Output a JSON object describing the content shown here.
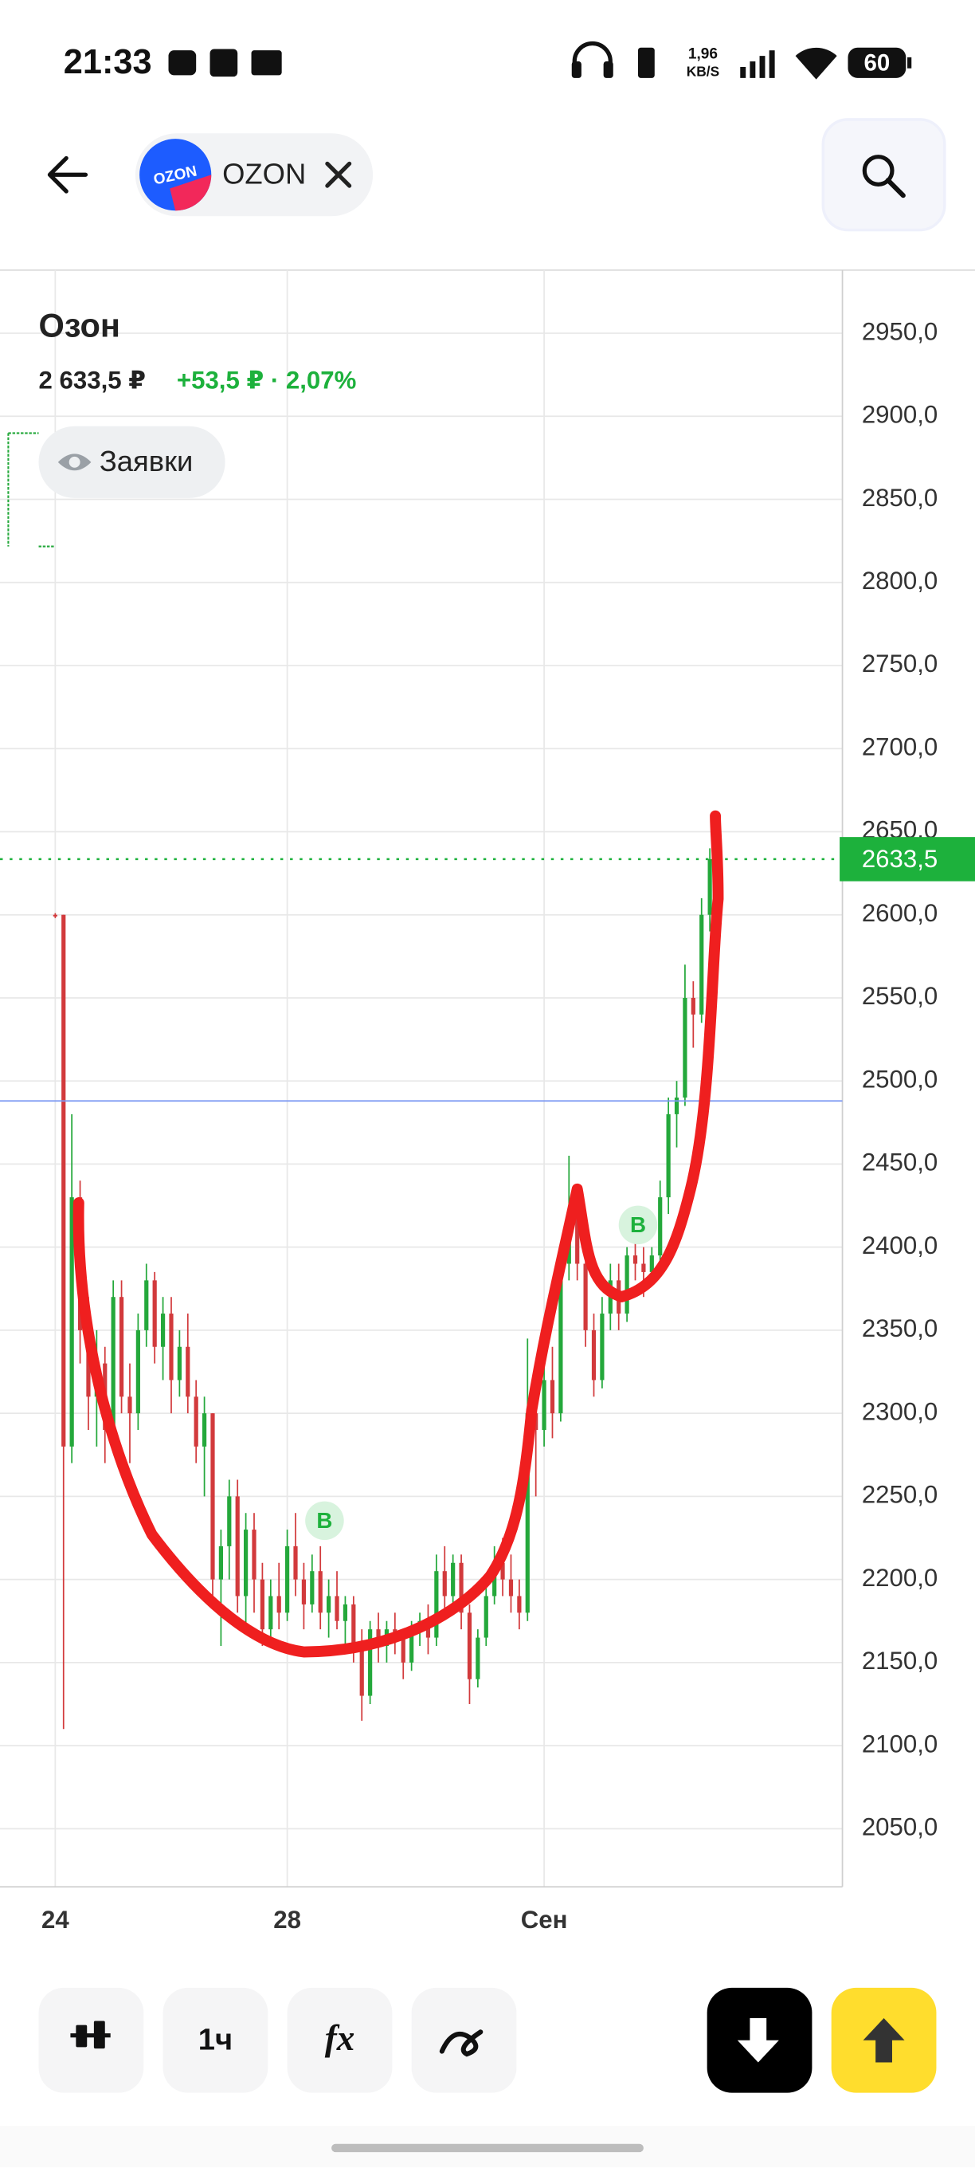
{
  "status_bar": {
    "time": "21:33",
    "speed_value": "1,96",
    "speed_unit": "KB/S",
    "battery": "60"
  },
  "header": {
    "ticker": "OZON",
    "logo_text": "OZON"
  },
  "instrument": {
    "name": "Озон",
    "price": "2 633,5 ₽",
    "change": "+53,5 ₽ · 2,07%",
    "orders_button": "Заявки"
  },
  "chart_data": {
    "type": "candlestick",
    "categories": [
      "24",
      null,
      null,
      null,
      null,
      null,
      null,
      null,
      null,
      null,
      null,
      null,
      null,
      null,
      null,
      null,
      null,
      null,
      null,
      null,
      null,
      null,
      null,
      null,
      null,
      null,
      null,
      null,
      "28",
      null,
      null,
      null,
      null,
      null,
      null,
      null,
      null,
      null,
      null,
      null,
      null,
      null,
      null,
      null,
      null,
      null,
      null,
      null,
      null,
      null,
      null,
      null,
      null,
      null,
      null,
      null,
      null,
      null,
      null,
      "Сен",
      null,
      null,
      null,
      null,
      null,
      null,
      null,
      null,
      null,
      null,
      null,
      null,
      null,
      null,
      null,
      null,
      null,
      null,
      null,
      null
    ],
    "open": [
      2600,
      2600,
      2280,
      2430,
      2350,
      2310,
      2330,
      2290,
      2370,
      2310,
      2300,
      2350,
      2380,
      2340,
      2360,
      2320,
      2340,
      2310,
      2280,
      2300,
      2200,
      2220,
      2250,
      2190,
      2230,
      2200,
      2170,
      2190,
      2180,
      2220,
      2200,
      2185,
      2205,
      2180,
      2190,
      2175,
      2185,
      2160,
      2130,
      2170,
      2160,
      2170,
      2165,
      2150,
      2170,
      2175,
      2165,
      2205,
      2190,
      2210,
      2180,
      2140,
      2165,
      2190,
      2210,
      2200,
      2190,
      2180,
      2300,
      2290,
      2320,
      2300,
      2390,
      2420,
      2390,
      2350,
      2320,
      2360,
      2380,
      2360,
      2395,
      2390,
      2385,
      2395,
      2430,
      2480,
      2490,
      2550,
      2540,
      2600
    ],
    "high": [
      2601,
      2600,
      2480,
      2440,
      2370,
      2350,
      2340,
      2380,
      2380,
      2330,
      2360,
      2390,
      2385,
      2370,
      2370,
      2350,
      2360,
      2320,
      2310,
      2300,
      2230,
      2260,
      2260,
      2240,
      2240,
      2210,
      2200,
      2210,
      2230,
      2240,
      2210,
      2215,
      2220,
      2200,
      2205,
      2190,
      2190,
      2170,
      2175,
      2180,
      2175,
      2180,
      2170,
      2175,
      2180,
      2185,
      2215,
      2220,
      2215,
      2215,
      2185,
      2170,
      2200,
      2220,
      2225,
      2215,
      2200,
      2345,
      2320,
      2330,
      2340,
      2400,
      2455,
      2430,
      2410,
      2360,
      2370,
      2390,
      2390,
      2400,
      2405,
      2400,
      2400,
      2440,
      2490,
      2500,
      2570,
      2560,
      2610,
      2640
    ],
    "low": [
      2598,
      2110,
      2270,
      2330,
      2290,
      2280,
      2270,
      2280,
      2300,
      2270,
      2290,
      2340,
      2330,
      2320,
      2300,
      2310,
      2300,
      2270,
      2250,
      2190,
      2160,
      2200,
      2180,
      2170,
      2180,
      2160,
      2165,
      2170,
      2175,
      2190,
      2170,
      2180,
      2170,
      2165,
      2170,
      2160,
      2150,
      2115,
      2125,
      2150,
      2150,
      2155,
      2140,
      2145,
      2160,
      2155,
      2160,
      2180,
      2185,
      2170,
      2125,
      2135,
      2160,
      2185,
      2190,
      2180,
      2170,
      2175,
      2250,
      2280,
      2285,
      2295,
      2380,
      2380,
      2340,
      2310,
      2315,
      2350,
      2350,
      2355,
      2380,
      2370,
      2380,
      2390,
      2420,
      2460,
      2485,
      2520,
      2535,
      2590
    ],
    "close": [
      2599,
      2280,
      2430,
      2350,
      2310,
      2330,
      2290,
      2370,
      2310,
      2300,
      2350,
      2380,
      2340,
      2360,
      2320,
      2340,
      2310,
      2280,
      2300,
      2200,
      2220,
      2250,
      2190,
      2230,
      2200,
      2170,
      2190,
      2180,
      2220,
      2200,
      2185,
      2205,
      2180,
      2190,
      2175,
      2185,
      2160,
      2130,
      2170,
      2160,
      2170,
      2165,
      2150,
      2170,
      2175,
      2165,
      2205,
      2190,
      2210,
      2180,
      2140,
      2165,
      2190,
      2210,
      2200,
      2190,
      2180,
      2300,
      2290,
      2320,
      2300,
      2390,
      2420,
      2390,
      2350,
      2320,
      2360,
      2380,
      2360,
      2395,
      2390,
      2385,
      2395,
      2430,
      2480,
      2490,
      2550,
      2540,
      2600,
      2633.5
    ],
    "up_color": "#24a83b",
    "down_color": "#d23a3c",
    "ylim": [
      2015,
      2988
    ],
    "yticks": [
      {
        "value": 2050,
        "label": "2050,0"
      },
      {
        "value": 2100,
        "label": "2100,0"
      },
      {
        "value": 2150,
        "label": "2150,0"
      },
      {
        "value": 2200,
        "label": "2200,0"
      },
      {
        "value": 2250,
        "label": "2250,0"
      },
      {
        "value": 2300,
        "label": "2300,0"
      },
      {
        "value": 2350,
        "label": "2350,0"
      },
      {
        "value": 2400,
        "label": "2400,0"
      },
      {
        "value": 2450,
        "label": "2450,0"
      },
      {
        "value": 2500,
        "label": "2500,0"
      },
      {
        "value": 2550,
        "label": "2550,0"
      },
      {
        "value": 2600,
        "label": "2600,0"
      },
      {
        "value": 2650,
        "label": "2650,0"
      },
      {
        "value": 2700,
        "label": "2700,0"
      },
      {
        "value": 2750,
        "label": "2750,0"
      },
      {
        "value": 2800,
        "label": "2800,0"
      },
      {
        "value": 2850,
        "label": "2850,0"
      },
      {
        "value": 2900,
        "label": "2900,0"
      },
      {
        "value": 2950,
        "label": "2950,0"
      }
    ],
    "grid": true,
    "price_lines": [
      {
        "value": 2633.5,
        "label": "2633,5",
        "color": "#1db13c",
        "style": "dotted"
      },
      {
        "value": 2488,
        "color": "#7c98f2",
        "style": "solid"
      }
    ],
    "markers": [
      "B",
      "B"
    ]
  },
  "toolbar": {
    "interval": "1ч"
  }
}
